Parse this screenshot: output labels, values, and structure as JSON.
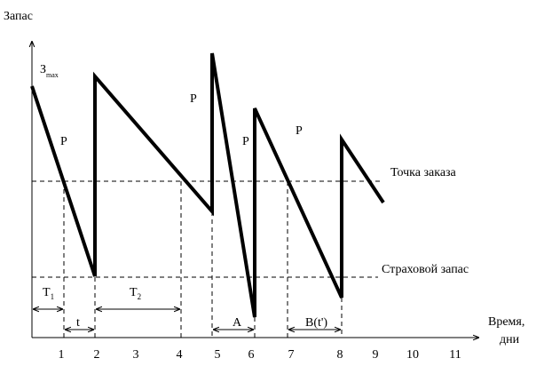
{
  "axis": {
    "y_label": "Запас",
    "x_label_line1": "Время,",
    "x_label_line2": "дни",
    "ticks": [
      "1",
      "2",
      "3",
      "4",
      "5",
      "6",
      "7",
      "8",
      "9",
      "10",
      "11"
    ]
  },
  "levels": {
    "reorder_point": "Точка заказа",
    "safety_stock": "Страховой запас"
  },
  "max_label": {
    "main": "З",
    "sub": "max"
  },
  "p_labels": [
    "P",
    "P",
    "P",
    "P"
  ],
  "intervals": {
    "t1": {
      "main": "T",
      "sub": "1"
    },
    "t2": {
      "main": "T",
      "sub": "2"
    },
    "t": "t",
    "a": "A",
    "b": "B(t')"
  }
}
